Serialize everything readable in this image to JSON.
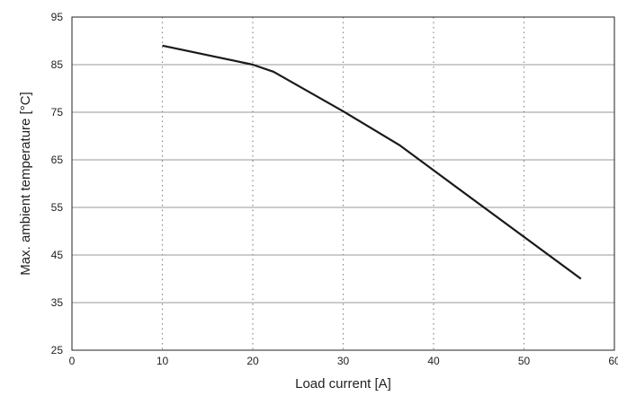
{
  "chart_data": {
    "type": "line",
    "title": "",
    "xlabel": "Load current [A]",
    "ylabel": "Max. ambient temperature [°C]",
    "xlim": [
      0,
      60
    ],
    "ylim": [
      25,
      95
    ],
    "x_ticks": [
      0,
      10,
      20,
      30,
      40,
      50,
      60
    ],
    "y_ticks": [
      25,
      35,
      45,
      55,
      65,
      75,
      85,
      95
    ],
    "x_tick_labels": [
      "0",
      "10",
      "20",
      "30",
      "40",
      "50",
      "60"
    ],
    "y_tick_labels": [
      "25",
      "35",
      "45",
      "55",
      "65",
      "75",
      "85",
      "95"
    ],
    "grid": {
      "x": "dotted",
      "y": "solid"
    },
    "legend": "none",
    "series": [
      {
        "x": [
          10,
          20,
          22.3,
          30,
          36.3,
          40,
          56.3
        ],
        "y": [
          89,
          85,
          83.5,
          75.2,
          68,
          62.8,
          40
        ],
        "color": "#1a1a1a"
      }
    ]
  }
}
